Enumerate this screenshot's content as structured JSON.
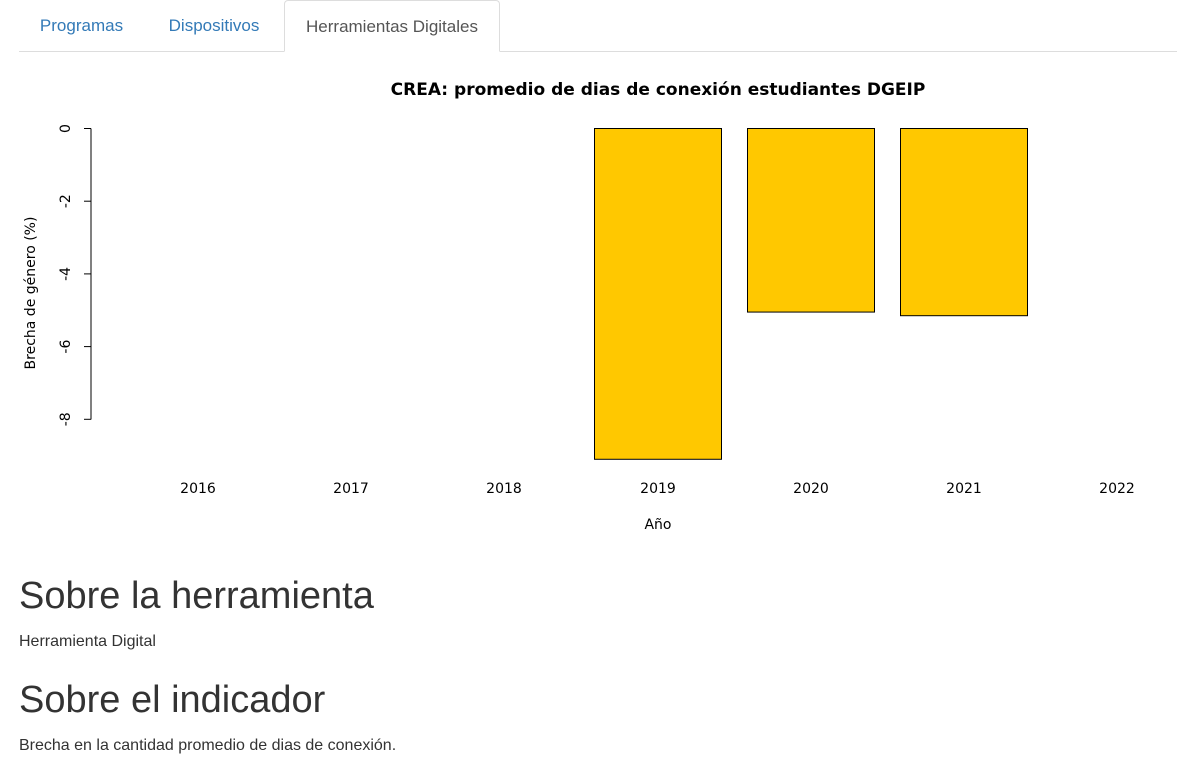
{
  "tabs": [
    {
      "label": "Programas",
      "active": false
    },
    {
      "label": "Dispositivos",
      "active": false
    },
    {
      "label": "Herramientas Digitales",
      "active": true
    }
  ],
  "colors": {
    "bar_fill": "#FFC800",
    "tab_link": "#337ab7"
  },
  "chart_data": {
    "type": "bar",
    "title": "CREA: promedio de dias de conexión estudiantes DGEIP",
    "xlabel": "Año",
    "ylabel": "Brecha de género (%)",
    "categories": [
      "2016",
      "2017",
      "2018",
      "2019",
      "2020",
      "2021",
      "2022"
    ],
    "values": [
      null,
      null,
      null,
      -9.1,
      -5.05,
      -5.15,
      null
    ],
    "yticks": [
      0,
      -2,
      -4,
      -6,
      -8
    ],
    "ylim": [
      -9.1,
      0
    ],
    "grid": false
  },
  "sections": [
    {
      "title": "Sobre la herramienta",
      "text": "Herramienta Digital"
    },
    {
      "title": "Sobre el indicador",
      "text": "Brecha en la cantidad promedio de dias de conexión."
    }
  ]
}
